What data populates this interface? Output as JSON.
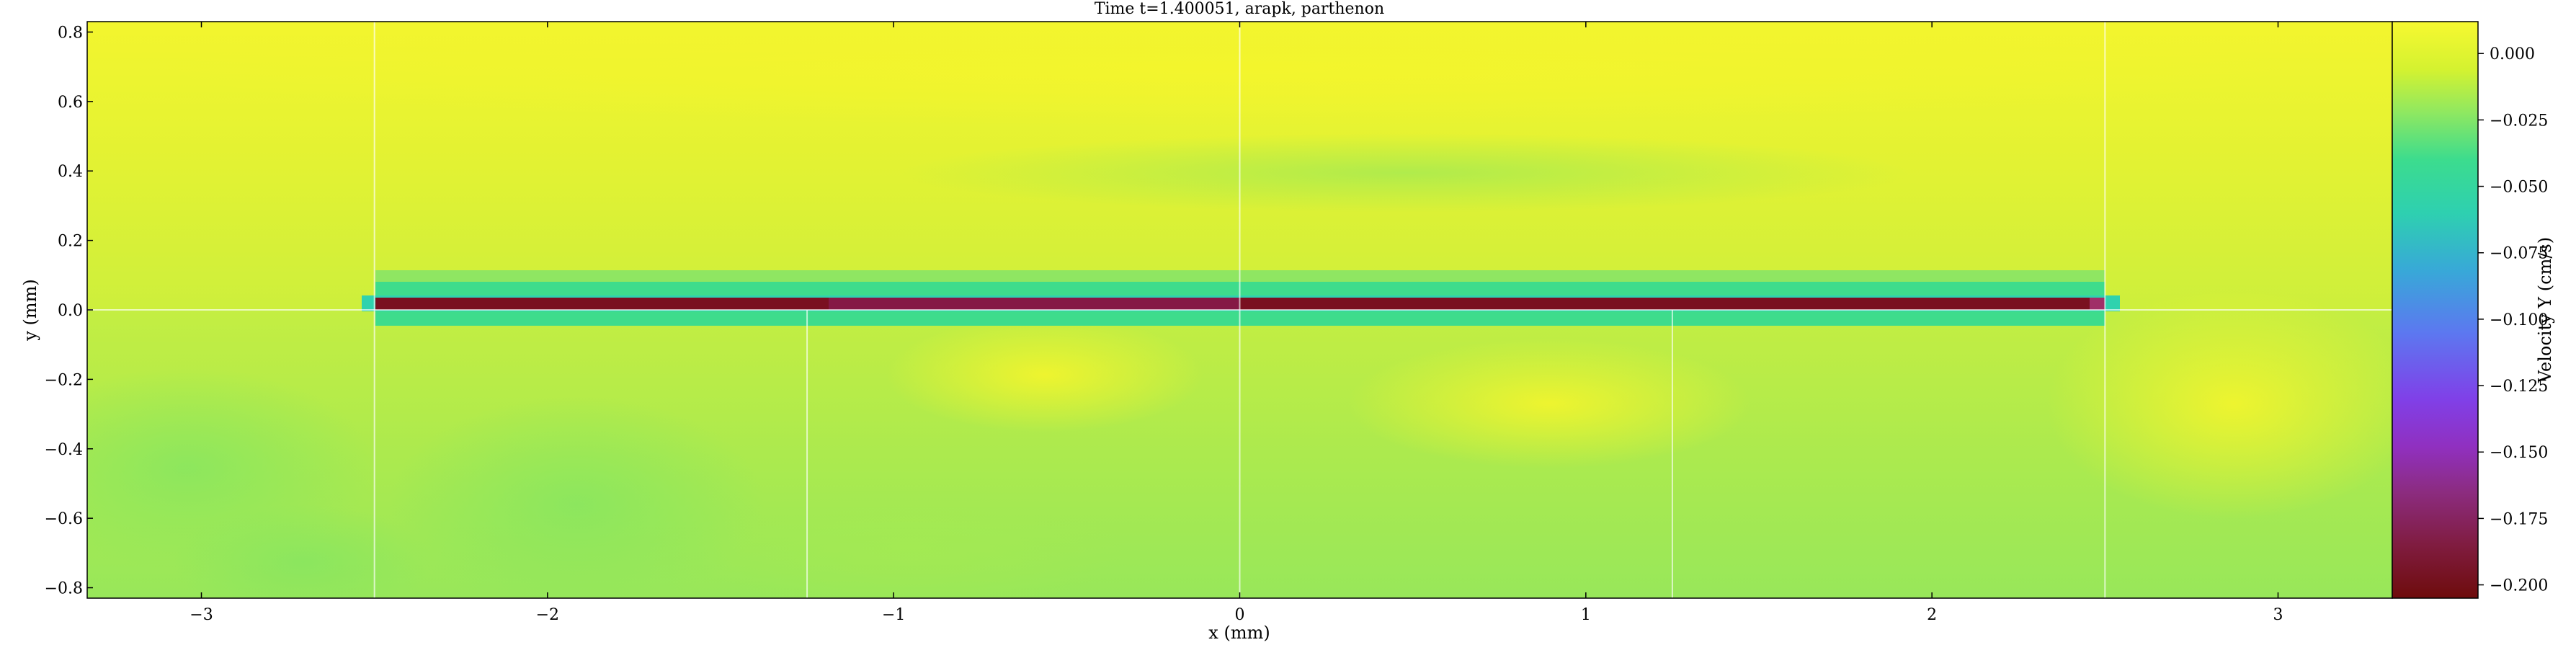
{
  "chart_data": {
    "type": "heatmap",
    "title": "Time t=1.400051, arapk, parthenon",
    "xlabel": "x  (mm)",
    "ylabel": "y  (mm)",
    "xlim": [
      -3.33,
      3.33
    ],
    "ylim": [
      -0.83,
      0.83
    ],
    "xticks": [
      -3,
      -2,
      -1,
      0,
      1,
      2,
      3
    ],
    "xtick_labels": [
      "−3",
      "−2",
      "−1",
      "0",
      "1",
      "2",
      "3"
    ],
    "yticks": [
      -0.8,
      -0.6,
      -0.4,
      -0.2,
      0.0,
      0.2,
      0.4,
      0.6,
      0.8
    ],
    "ytick_labels": [
      "−0.8",
      "−0.6",
      "−0.4",
      "−0.2",
      "0.0",
      "0.2",
      "0.4",
      "0.6",
      "0.8"
    ],
    "grid": true,
    "colorbar": {
      "label": "Velocity Y  (cm/s)",
      "range": [
        -0.205,
        0.012
      ],
      "ticks": [
        0.0,
        -0.025,
        -0.05,
        -0.075,
        -0.1,
        -0.125,
        -0.15,
        -0.175,
        -0.2
      ],
      "tick_labels": [
        "0.000",
        "−0.025",
        "−0.050",
        "−0.075",
        "−0.100",
        "−0.125",
        "−0.150",
        "−0.175",
        "−0.200"
      ],
      "colormap_stops": [
        {
          "value": 0.012,
          "color": "#f7f830"
        },
        {
          "value": -0.006,
          "color": "#d4f230"
        },
        {
          "value": -0.022,
          "color": "#90e860"
        },
        {
          "value": -0.04,
          "color": "#3cdc8e"
        },
        {
          "value": -0.06,
          "color": "#2ed0b0"
        },
        {
          "value": -0.082,
          "color": "#38a8d8"
        },
        {
          "value": -0.105,
          "color": "#5c78f0"
        },
        {
          "value": -0.13,
          "color": "#8040e8"
        },
        {
          "value": -0.148,
          "color": "#9030c0"
        },
        {
          "value": -0.165,
          "color": "#8c2c80"
        },
        {
          "value": -0.185,
          "color": "#801c40"
        },
        {
          "value": -0.205,
          "color": "#6e0c0c"
        }
      ]
    },
    "field_features": {
      "background_value": -0.01,
      "strip": {
        "x_range": [
          -2.5,
          2.5
        ],
        "y_range": [
          0.0,
          0.035
        ],
        "value": -0.203
      },
      "strip_halo": {
        "x_range": [
          -2.55,
          2.55
        ],
        "y_range": [
          -0.04,
          0.11
        ],
        "value": -0.045
      },
      "upper_band_value": 0.005
    }
  }
}
